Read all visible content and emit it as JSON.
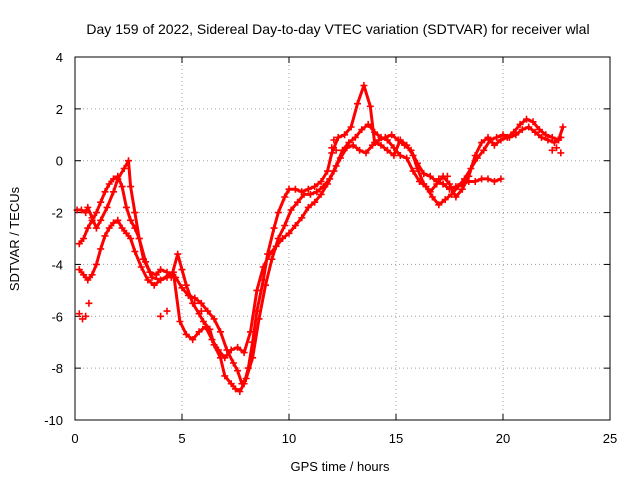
{
  "chart_data": {
    "type": "scatter",
    "title": "Day 159 of 2022, Sidereal Day-to-day VTEC variation (SDTVAR) for receiver wlal",
    "xlabel": "GPS time / hours",
    "ylabel": "SDTVAR / TECUs",
    "xlim": [
      0,
      25
    ],
    "ylim": [
      -10,
      4
    ],
    "xticks": [
      "0",
      "5",
      "10",
      "15",
      "20",
      "25"
    ],
    "yticks": [
      "-10",
      "-8",
      "-6",
      "-4",
      "-2",
      "0",
      "2",
      "4"
    ],
    "grid": true,
    "marker": "+",
    "color": "#ff0000",
    "series": [
      {
        "x": [
          0.1,
          0.3,
          0.5,
          0.6,
          0.8,
          1.0,
          1.2,
          1.5,
          1.8,
          2.0,
          2.3,
          2.5,
          2.6,
          2.8,
          3.0,
          3.2,
          3.5,
          3.8,
          4.0,
          4.3,
          4.5,
          4.8,
          5.0,
          5.2,
          5.5,
          5.8,
          6.0,
          6.3,
          6.5,
          6.8,
          7.0,
          7.3,
          7.5,
          7.7,
          7.9,
          8.1,
          8.3,
          8.5,
          8.8,
          9.0,
          9.3,
          9.5,
          9.8,
          10.0,
          10.3,
          10.6,
          10.9,
          11.2,
          11.5,
          11.8,
          12.0,
          12.3,
          12.6,
          12.9,
          13.2,
          13.5,
          13.8,
          14.0,
          14.3,
          14.6,
          14.9,
          15.2,
          15.5,
          15.8,
          16.0,
          16.3,
          16.6,
          16.9,
          17.2,
          17.5,
          17.8,
          18.1,
          18.4,
          18.7,
          19.0,
          19.3,
          19.6,
          19.9,
          20.2,
          20.5,
          20.8,
          21.1,
          21.4,
          21.7,
          22.0,
          22.3,
          22.6,
          22.8
        ],
        "y": [
          -1.9,
          -1.9,
          -2.0,
          -1.8,
          -2.2,
          -2.6,
          -2.3,
          -1.8,
          -1.2,
          -0.7,
          -0.3,
          0.0,
          -1.0,
          -2.0,
          -3.0,
          -3.8,
          -4.3,
          -4.4,
          -4.2,
          -4.3,
          -4.5,
          -3.6,
          -4.2,
          -4.8,
          -5.5,
          -5.9,
          -6.2,
          -6.5,
          -7.1,
          -7.6,
          -8.3,
          -8.6,
          -8.8,
          -8.9,
          -8.6,
          -8.0,
          -7.0,
          -5.8,
          -4.6,
          -3.6,
          -2.6,
          -2.0,
          -1.4,
          -1.1,
          -1.1,
          -1.2,
          -1.1,
          -1.0,
          -0.8,
          -0.4,
          0.3,
          0.9,
          1.0,
          1.3,
          2.2,
          2.9,
          2.1,
          0.7,
          0.6,
          0.4,
          0.2,
          0.8,
          0.6,
          0.2,
          -0.3,
          -0.9,
          -1.2,
          -0.9,
          -0.6,
          -0.9,
          -1.4,
          -1.1,
          -0.6,
          0.2,
          0.7,
          0.9,
          0.6,
          0.8,
          0.9,
          1.1,
          1.4,
          1.6,
          1.5,
          1.2,
          1.0,
          0.9,
          0.8,
          1.3
        ]
      },
      {
        "x": [
          0.2,
          0.4,
          0.6,
          0.8,
          1.0,
          1.2,
          1.4,
          1.6,
          1.8,
          2.0,
          2.2,
          2.4,
          2.6,
          2.8,
          3.0,
          3.3,
          3.6,
          4.0,
          4.4,
          4.7,
          5.0,
          5.3,
          5.6,
          5.9,
          6.2,
          6.5,
          6.8,
          7.1,
          7.4,
          7.6,
          7.8,
          8.0,
          8.3,
          8.6,
          8.9,
          9.2,
          9.5,
          9.8,
          10.1,
          10.4,
          10.7,
          11.0,
          11.3,
          11.6,
          11.9,
          12.2,
          12.5,
          12.8,
          13.1,
          13.4,
          13.7,
          14.0,
          14.3,
          14.6,
          14.9,
          15.2,
          15.5,
          15.8,
          16.1,
          16.4,
          16.7,
          17.0,
          17.3,
          17.6,
          17.9,
          18.2,
          18.5,
          18.8,
          19.1,
          19.4,
          19.7,
          20.0,
          20.3,
          20.6,
          20.9,
          21.2,
          21.5,
          21.8,
          22.1,
          22.4,
          22.7
        ],
        "y": [
          -3.2,
          -3.0,
          -2.6,
          -2.3,
          -2.0,
          -1.6,
          -1.2,
          -0.9,
          -0.7,
          -0.6,
          -1.0,
          -1.8,
          -2.3,
          -2.6,
          -3.0,
          -3.9,
          -4.5,
          -4.6,
          -4.4,
          -4.5,
          -4.9,
          -5.2,
          -5.3,
          -5.5,
          -5.8,
          -6.1,
          -6.6,
          -7.3,
          -7.8,
          -8.1,
          -8.6,
          -8.4,
          -7.6,
          -6.1,
          -4.8,
          -3.8,
          -3.0,
          -2.5,
          -1.9,
          -1.6,
          -1.3,
          -1.3,
          -1.2,
          -1.0,
          -0.7,
          -0.2,
          0.4,
          0.7,
          0.9,
          1.2,
          1.4,
          1.1,
          0.9,
          0.8,
          0.5,
          0.2,
          0.1,
          -0.4,
          -0.8,
          -1.0,
          -1.4,
          -1.7,
          -1.5,
          -1.3,
          -1.0,
          -0.7,
          -0.3,
          0.1,
          0.4,
          0.8,
          0.9,
          1.0,
          0.9,
          1.0,
          1.2,
          1.3,
          1.1,
          0.9,
          0.8,
          0.7,
          0.9
        ]
      },
      {
        "x": [
          0.2,
          0.4,
          0.6,
          0.8,
          1.0,
          1.2,
          1.4,
          1.6,
          1.8,
          2.0,
          2.2,
          2.4,
          2.6,
          2.8,
          3.1,
          3.4,
          3.7,
          4.0,
          4.3,
          4.6,
          4.9,
          5.2,
          5.5,
          5.8,
          6.1,
          6.4,
          6.7,
          7.0,
          7.3,
          7.6,
          7.9,
          8.2,
          8.5,
          8.8,
          9.1,
          9.4,
          9.7,
          10.0,
          10.3,
          10.6,
          10.9,
          11.2,
          11.5,
          11.8,
          12.1,
          12.4,
          12.7,
          13.0,
          13.3,
          13.6,
          13.9,
          14.2,
          14.5,
          14.8,
          15.1,
          15.4,
          15.7,
          16.0,
          16.3,
          16.6,
          16.9,
          17.2,
          17.5,
          17.8,
          18.1,
          18.4,
          18.7,
          19.0,
          19.3,
          19.6,
          19.9
        ],
        "y": [
          -4.2,
          -4.4,
          -4.6,
          -4.4,
          -4.0,
          -3.4,
          -2.9,
          -2.6,
          -2.4,
          -2.3,
          -2.6,
          -2.8,
          -3.0,
          -3.5,
          -4.1,
          -4.6,
          -4.8,
          -4.6,
          -4.5,
          -4.3,
          -6.2,
          -6.7,
          -6.9,
          -6.6,
          -6.4,
          -6.9,
          -7.3,
          -7.6,
          -7.3,
          -7.2,
          -7.4,
          -6.6,
          -5.0,
          -4.1,
          -3.6,
          -3.3,
          -3.0,
          -2.8,
          -2.5,
          -2.2,
          -1.8,
          -1.6,
          -1.3,
          -0.9,
          -0.4,
          0.1,
          0.5,
          0.6,
          0.4,
          0.3,
          0.6,
          0.8,
          0.9,
          1.0,
          0.8,
          0.6,
          0.4,
          -0.1,
          -0.5,
          -0.6,
          -0.8,
          -0.9,
          -1.1,
          -1.0,
          -0.9,
          -0.8,
          -0.8,
          -0.7,
          -0.7,
          -0.8,
          -0.7
        ]
      },
      {
        "x": [
          0.2,
          0.35,
          0.5,
          0.65,
          4.0,
          4.3,
          5.6,
          5.9,
          12.0,
          12.1,
          12.2,
          17.0,
          17.2,
          17.4,
          22.3,
          22.5,
          22.7
        ],
        "y": [
          -5.9,
          -6.1,
          -6.0,
          -5.5,
          -6.0,
          -5.8,
          -5.5,
          -5.8,
          0.5,
          0.8,
          0.4,
          -0.7,
          -0.9,
          -0.6,
          0.4,
          0.5,
          0.3
        ]
      }
    ]
  }
}
